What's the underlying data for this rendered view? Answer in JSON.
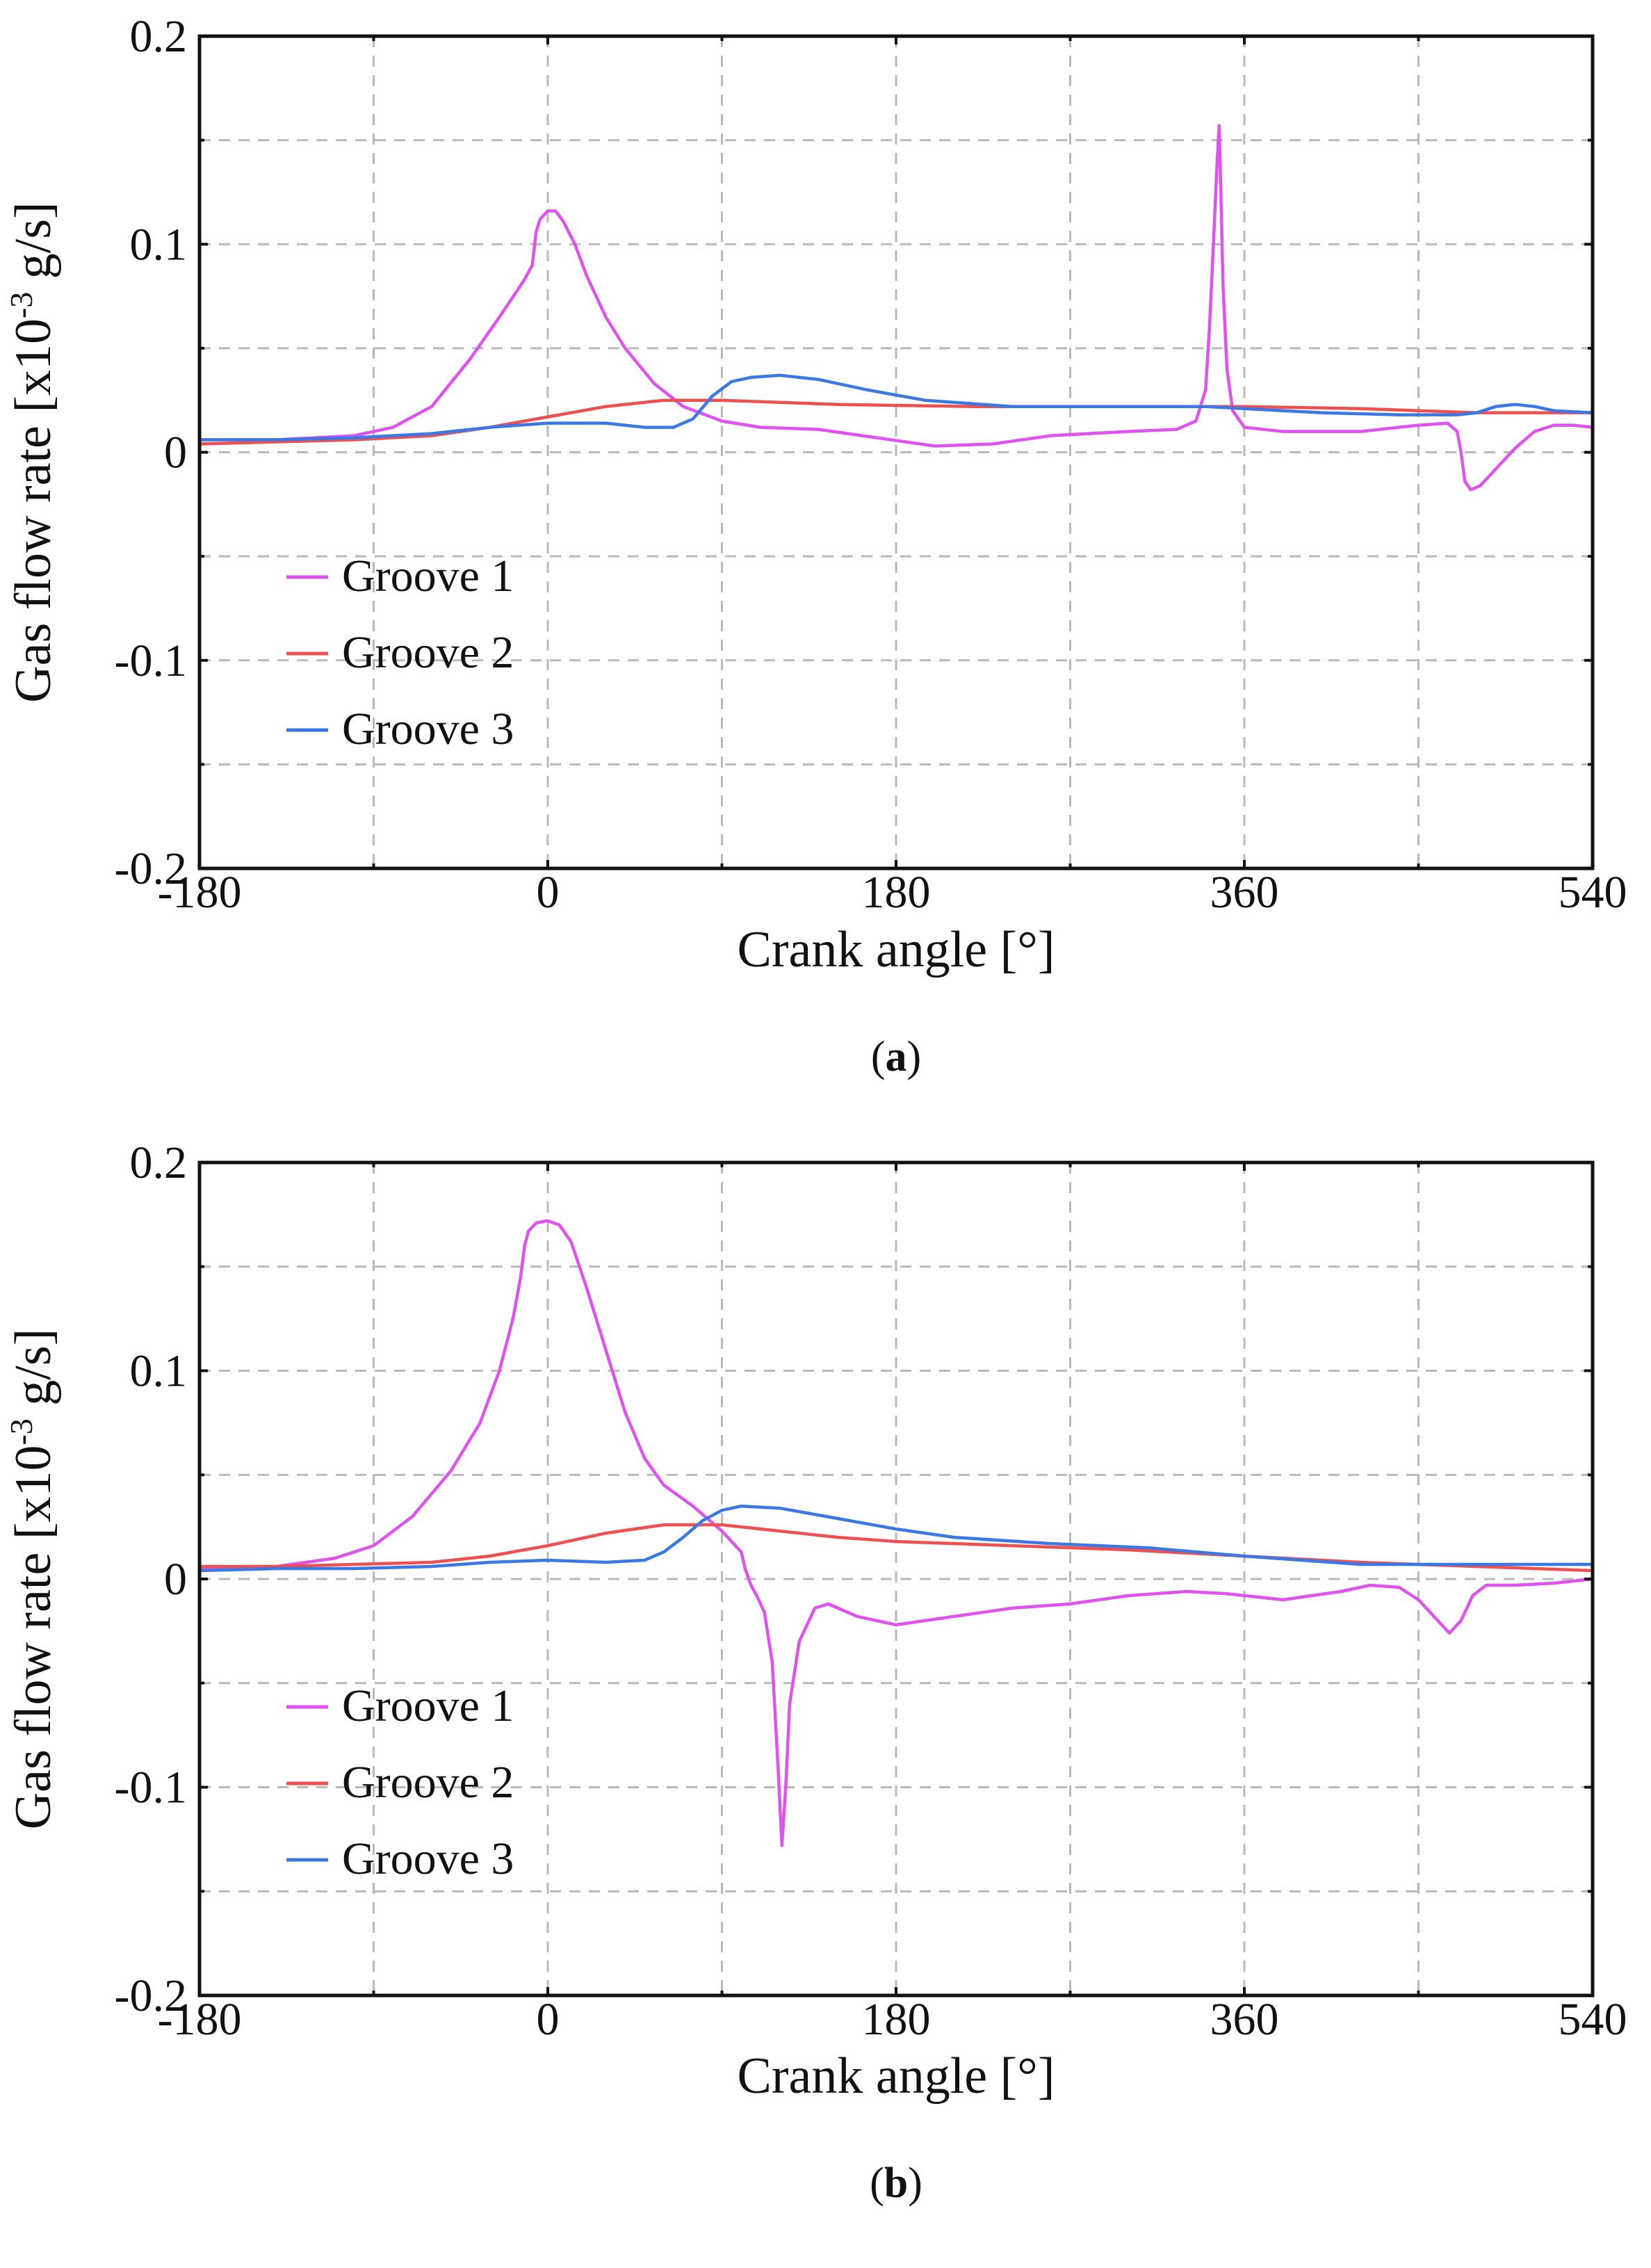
{
  "chart_data": [
    {
      "type": "line",
      "caption_letter": "a",
      "xlabel": "Crank angle [°]",
      "ylabel_main": "Gas flow rate [x10",
      "ylabel_exp": "-3",
      "ylabel_tail": " g/s]",
      "xlim": [
        -180,
        540
      ],
      "ylim": [
        -0.2,
        0.2
      ],
      "x_ticks": [
        -180,
        0,
        180,
        360,
        540
      ],
      "x_tick_labels": [
        "-180",
        "0",
        "180",
        "360",
        "540"
      ],
      "x_minor_ticks": [
        -90,
        90,
        270,
        450
      ],
      "y_ticks": [
        -0.2,
        -0.1,
        0,
        0.1,
        0.2
      ],
      "y_tick_labels": [
        "-0.2",
        "-0.1",
        "0",
        "0.1",
        "0.2"
      ],
      "y_minor_ticks": [
        -0.15,
        -0.05,
        0.05,
        0.15
      ],
      "legend_position": "middle-left",
      "series": [
        {
          "name": "Groove 1",
          "color": "#e052f0",
          "points": [
            [
              -180,
              0.006
            ],
            [
              -140,
              0.006
            ],
            [
              -100,
              0.008
            ],
            [
              -80,
              0.012
            ],
            [
              -60,
              0.022
            ],
            [
              -40,
              0.045
            ],
            [
              -25,
              0.065
            ],
            [
              -12,
              0.083
            ],
            [
              -8,
              0.09
            ],
            [
              -6,
              0.106
            ],
            [
              -4,
              0.112
            ],
            [
              0,
              0.116
            ],
            [
              4,
              0.116
            ],
            [
              8,
              0.111
            ],
            [
              14,
              0.1
            ],
            [
              20,
              0.085
            ],
            [
              30,
              0.065
            ],
            [
              40,
              0.05
            ],
            [
              55,
              0.033
            ],
            [
              70,
              0.022
            ],
            [
              90,
              0.015
            ],
            [
              110,
              0.012
            ],
            [
              140,
              0.011
            ],
            [
              170,
              0.007
            ],
            [
              200,
              0.003
            ],
            [
              230,
              0.004
            ],
            [
              260,
              0.008
            ],
            [
              300,
              0.01
            ],
            [
              325,
              0.011
            ],
            [
              335,
              0.015
            ],
            [
              340,
              0.03
            ],
            [
              342,
              0.06
            ],
            [
              344,
              0.1
            ],
            [
              346,
              0.14
            ],
            [
              347,
              0.157
            ],
            [
              348,
              0.12
            ],
            [
              349,
              0.08
            ],
            [
              351,
              0.04
            ],
            [
              354,
              0.02
            ],
            [
              360,
              0.012
            ],
            [
              380,
              0.01
            ],
            [
              420,
              0.01
            ],
            [
              450,
              0.013
            ],
            [
              465,
              0.014
            ],
            [
              470,
              0.01
            ],
            [
              472,
              0
            ],
            [
              474,
              -0.014
            ],
            [
              477,
              -0.018
            ],
            [
              482,
              -0.016
            ],
            [
              490,
              -0.008
            ],
            [
              500,
              0.002
            ],
            [
              510,
              0.01
            ],
            [
              520,
              0.013
            ],
            [
              530,
              0.013
            ],
            [
              540,
              0.012
            ]
          ]
        },
        {
          "name": "Groove 2",
          "color": "#ee5050",
          "points": [
            [
              -180,
              0.004
            ],
            [
              -140,
              0.005
            ],
            [
              -100,
              0.006
            ],
            [
              -60,
              0.008
            ],
            [
              -30,
              0.012
            ],
            [
              0,
              0.017
            ],
            [
              30,
              0.022
            ],
            [
              60,
              0.025
            ],
            [
              90,
              0.025
            ],
            [
              150,
              0.023
            ],
            [
              220,
              0.022
            ],
            [
              300,
              0.022
            ],
            [
              360,
              0.022
            ],
            [
              420,
              0.021
            ],
            [
              480,
              0.019
            ],
            [
              540,
              0.019
            ]
          ]
        },
        {
          "name": "Groove 3",
          "color": "#3a78e6",
          "points": [
            [
              -180,
              0.006
            ],
            [
              -140,
              0.006
            ],
            [
              -100,
              0.007
            ],
            [
              -60,
              0.009
            ],
            [
              -30,
              0.012
            ],
            [
              0,
              0.014
            ],
            [
              30,
              0.014
            ],
            [
              50,
              0.012
            ],
            [
              65,
              0.012
            ],
            [
              75,
              0.016
            ],
            [
              85,
              0.027
            ],
            [
              95,
              0.034
            ],
            [
              105,
              0.036
            ],
            [
              120,
              0.037
            ],
            [
              140,
              0.035
            ],
            [
              165,
              0.03
            ],
            [
              195,
              0.025
            ],
            [
              240,
              0.022
            ],
            [
              300,
              0.022
            ],
            [
              340,
              0.022
            ],
            [
              360,
              0.021
            ],
            [
              400,
              0.019
            ],
            [
              440,
              0.018
            ],
            [
              470,
              0.018
            ],
            [
              480,
              0.019
            ],
            [
              490,
              0.022
            ],
            [
              500,
              0.023
            ],
            [
              510,
              0.022
            ],
            [
              520,
              0.02
            ],
            [
              540,
              0.019
            ]
          ]
        }
      ]
    },
    {
      "type": "line",
      "caption_letter": "b",
      "xlabel": "Crank angle [°]",
      "ylabel_main": "Gas flow rate [x10",
      "ylabel_exp": "-3",
      "ylabel_tail": " g/s]",
      "xlim": [
        -180,
        540
      ],
      "ylim": [
        -0.2,
        0.2
      ],
      "x_ticks": [
        -180,
        0,
        180,
        360,
        540
      ],
      "x_tick_labels": [
        "-180",
        "0",
        "180",
        "360",
        "540"
      ],
      "x_minor_ticks": [
        -90,
        90,
        270,
        450
      ],
      "y_ticks": [
        -0.2,
        -0.1,
        0,
        0.1,
        0.2
      ],
      "y_tick_labels": [
        "-0.2",
        "-0.1",
        "0",
        "0.1",
        "0.2"
      ],
      "y_minor_ticks": [
        -0.15,
        -0.05,
        0.05,
        0.15
      ],
      "legend_position": "lower-left",
      "series": [
        {
          "name": "Groove 1",
          "color": "#e052f0",
          "points": [
            [
              -180,
              0.005
            ],
            [
              -140,
              0.006
            ],
            [
              -110,
              0.01
            ],
            [
              -90,
              0.016
            ],
            [
              -70,
              0.03
            ],
            [
              -50,
              0.052
            ],
            [
              -35,
              0.075
            ],
            [
              -25,
              0.1
            ],
            [
              -18,
              0.125
            ],
            [
              -14,
              0.145
            ],
            [
              -12,
              0.16
            ],
            [
              -10,
              0.167
            ],
            [
              -6,
              0.171
            ],
            [
              0,
              0.172
            ],
            [
              6,
              0.17
            ],
            [
              12,
              0.162
            ],
            [
              20,
              0.14
            ],
            [
              30,
              0.11
            ],
            [
              40,
              0.08
            ],
            [
              50,
              0.058
            ],
            [
              60,
              0.045
            ],
            [
              75,
              0.035
            ],
            [
              90,
              0.023
            ],
            [
              95,
              0.018
            ],
            [
              100,
              0.013
            ],
            [
              102,
              0.005
            ],
            [
              105,
              -0.003
            ],
            [
              108,
              -0.008
            ],
            [
              112,
              -0.016
            ],
            [
              116,
              -0.04
            ],
            [
              119,
              -0.09
            ],
            [
              121,
              -0.128
            ],
            [
              123,
              -0.1
            ],
            [
              125,
              -0.06
            ],
            [
              130,
              -0.03
            ],
            [
              138,
              -0.014
            ],
            [
              145,
              -0.012
            ],
            [
              160,
              -0.018
            ],
            [
              180,
              -0.022
            ],
            [
              210,
              -0.018
            ],
            [
              240,
              -0.014
            ],
            [
              270,
              -0.012
            ],
            [
              300,
              -0.008
            ],
            [
              330,
              -0.006
            ],
            [
              350,
              -0.007
            ],
            [
              380,
              -0.01
            ],
            [
              410,
              -0.006
            ],
            [
              425,
              -0.003
            ],
            [
              440,
              -0.004
            ],
            [
              450,
              -0.01
            ],
            [
              460,
              -0.02
            ],
            [
              466,
              -0.026
            ],
            [
              472,
              -0.02
            ],
            [
              478,
              -0.008
            ],
            [
              485,
              -0.003
            ],
            [
              500,
              -0.003
            ],
            [
              520,
              -0.002
            ],
            [
              540,
              0
            ]
          ]
        },
        {
          "name": "Groove 2",
          "color": "#ee5050",
          "points": [
            [
              -180,
              0.006
            ],
            [
              -140,
              0.006
            ],
            [
              -100,
              0.007
            ],
            [
              -60,
              0.008
            ],
            [
              -30,
              0.011
            ],
            [
              0,
              0.016
            ],
            [
              30,
              0.022
            ],
            [
              60,
              0.026
            ],
            [
              90,
              0.026
            ],
            [
              120,
              0.023
            ],
            [
              150,
              0.02
            ],
            [
              180,
              0.018
            ],
            [
              240,
              0.016
            ],
            [
              300,
              0.014
            ],
            [
              360,
              0.011
            ],
            [
              420,
              0.008
            ],
            [
              480,
              0.006
            ],
            [
              540,
              0.004
            ]
          ]
        },
        {
          "name": "Groove 3",
          "color": "#3a78e6",
          "points": [
            [
              -180,
              0.004
            ],
            [
              -140,
              0.005
            ],
            [
              -100,
              0.005
            ],
            [
              -60,
              0.006
            ],
            [
              -30,
              0.008
            ],
            [
              0,
              0.009
            ],
            [
              30,
              0.008
            ],
            [
              50,
              0.009
            ],
            [
              60,
              0.013
            ],
            [
              70,
              0.02
            ],
            [
              80,
              0.028
            ],
            [
              90,
              0.033
            ],
            [
              100,
              0.035
            ],
            [
              120,
              0.034
            ],
            [
              150,
              0.029
            ],
            [
              180,
              0.024
            ],
            [
              210,
              0.02
            ],
            [
              260,
              0.017
            ],
            [
              310,
              0.015
            ],
            [
              360,
              0.011
            ],
            [
              420,
              0.007
            ],
            [
              460,
              0.007
            ],
            [
              500,
              0.007
            ],
            [
              540,
              0.007
            ]
          ]
        }
      ]
    }
  ]
}
